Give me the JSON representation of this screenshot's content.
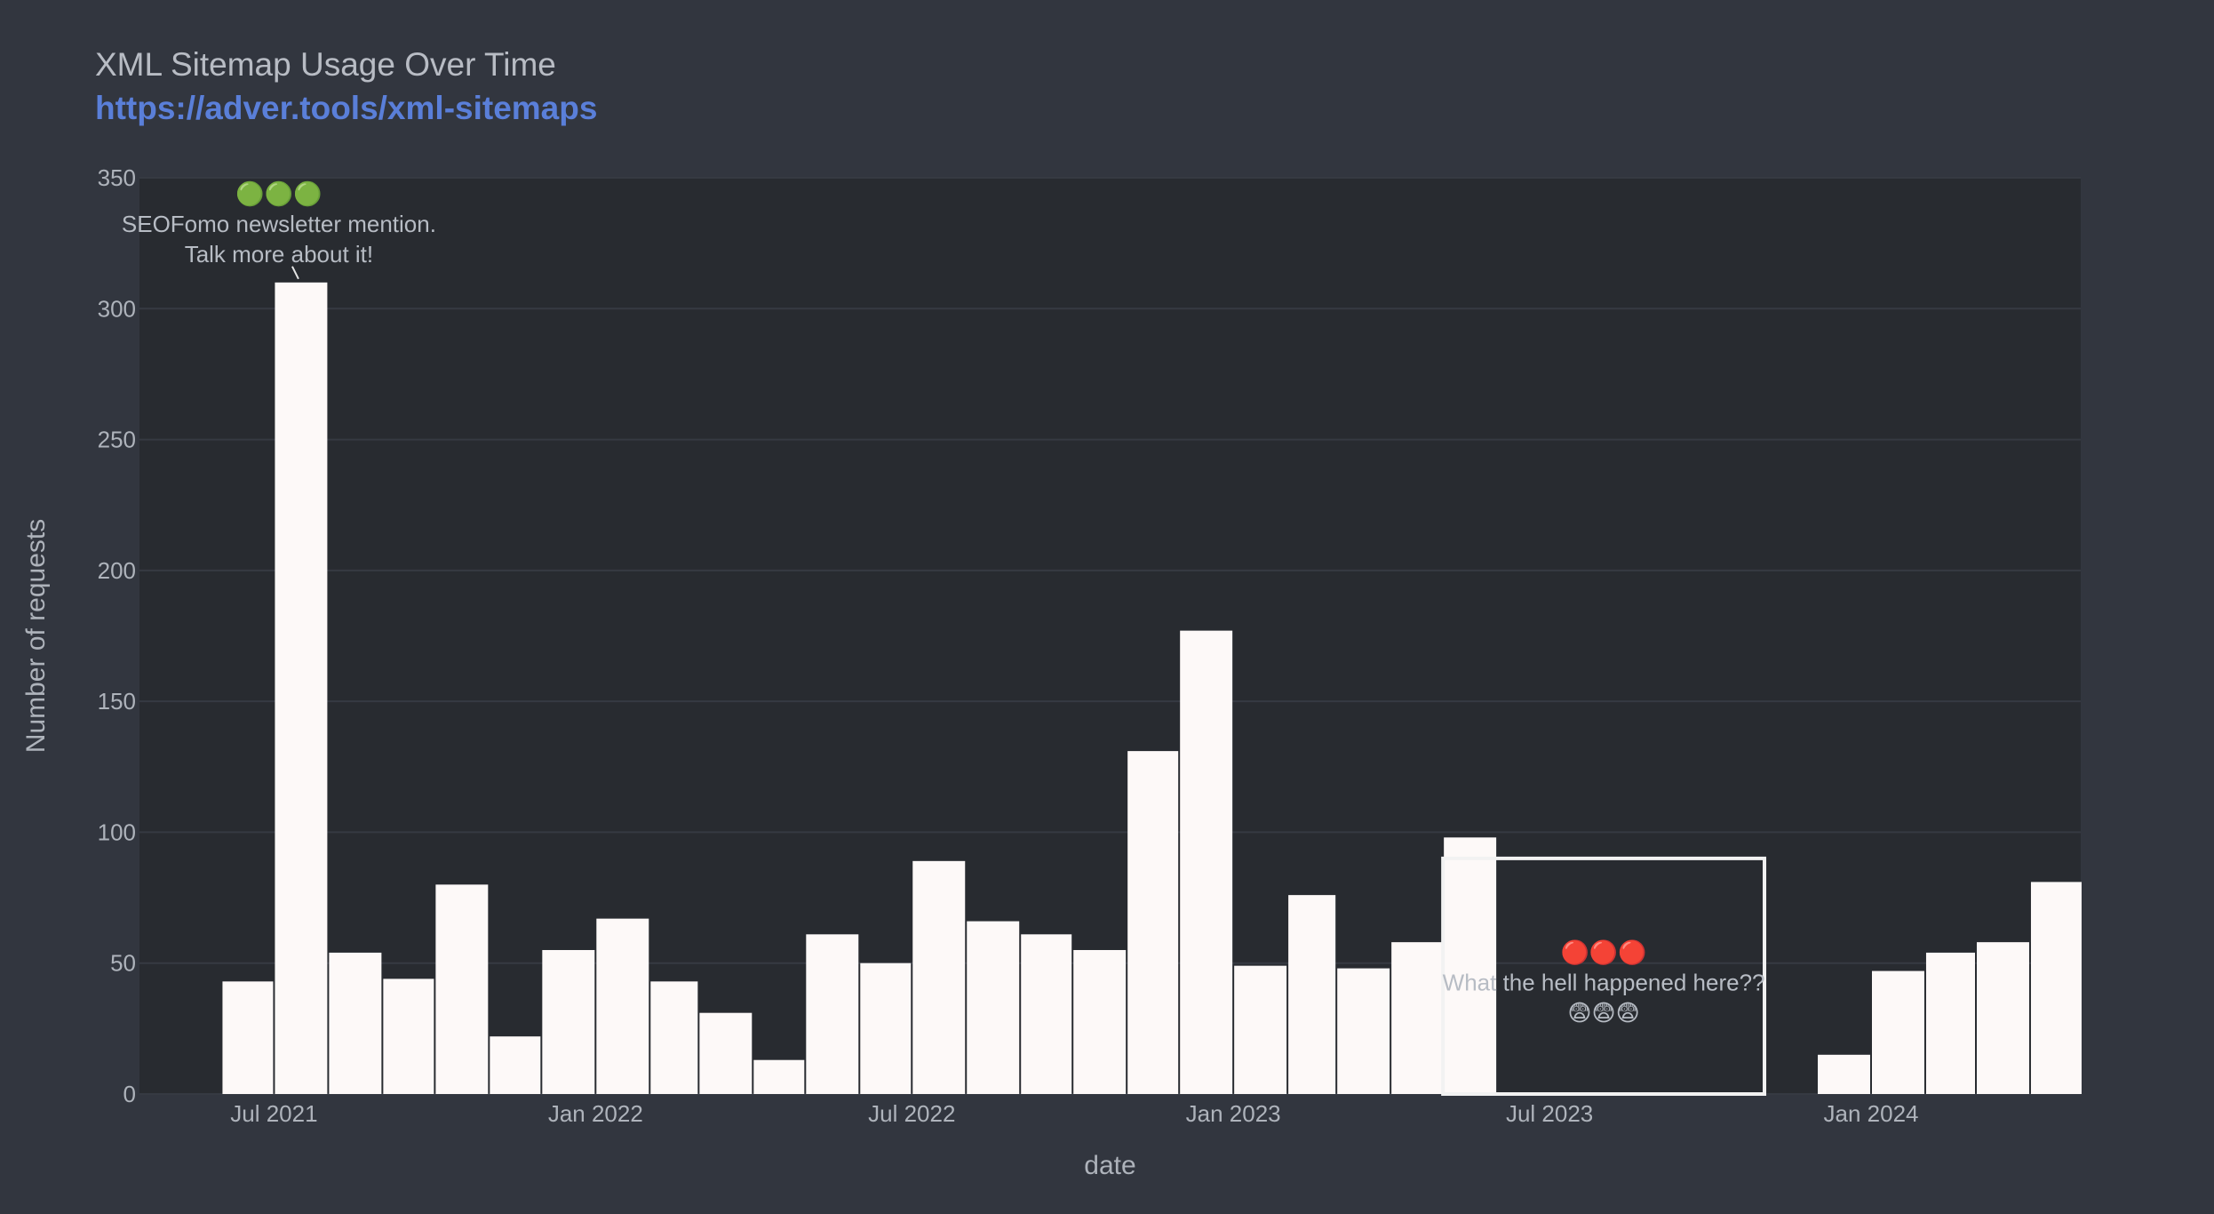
{
  "title": "XML Sitemap Usage Over Time",
  "subtitle": "https://adver.tools/xml-sitemaps",
  "chart_data": {
    "type": "bar",
    "x_unit": "month",
    "x": [
      "2021-06",
      "2021-07",
      "2021-08",
      "2021-09",
      "2021-10",
      "2021-11",
      "2021-12",
      "2022-01",
      "2022-02",
      "2022-03",
      "2022-04",
      "2022-05",
      "2022-06",
      "2022-07",
      "2022-08",
      "2022-09",
      "2022-10",
      "2022-11",
      "2022-12",
      "2023-01",
      "2023-02",
      "2023-03",
      "2023-04",
      "2023-05",
      "2023-06",
      "2023-07",
      "2023-08",
      "2023-09",
      "2023-10",
      "2023-11",
      "2023-12",
      "2024-01",
      "2024-02",
      "2024-03",
      "2024-04"
    ],
    "values": [
      43,
      310,
      54,
      44,
      80,
      22,
      55,
      67,
      43,
      31,
      13,
      61,
      50,
      89,
      66,
      61,
      55,
      131,
      177,
      49,
      76,
      48,
      58,
      98,
      0,
      0,
      0,
      0,
      0,
      0,
      15,
      47,
      54,
      58,
      81
    ],
    "xlabel": "date",
    "ylabel": "Number of requests",
    "ylim": [
      0,
      350
    ],
    "xlim": [
      "2021-04-15",
      "2024-04-30"
    ],
    "yticks": [
      0,
      50,
      100,
      150,
      200,
      250,
      300,
      350
    ],
    "xticks": [
      {
        "date": "2021-07-01",
        "label": "Jul 2021"
      },
      {
        "date": "2022-01-01",
        "label": "Jan 2022"
      },
      {
        "date": "2022-07-01",
        "label": "Jul 2022"
      },
      {
        "date": "2023-01-01",
        "label": "Jan 2023"
      },
      {
        "date": "2023-07-01",
        "label": "Jul 2023"
      },
      {
        "date": "2024-01-01",
        "label": "Jan 2024"
      }
    ],
    "grid": true,
    "colors": {
      "background": "#32363f",
      "plot_background": "#282b30",
      "bar": "#fdf9f8",
      "grid": "#363a42",
      "text": "#aeb3bb"
    },
    "annotations": [
      {
        "point": {
          "x": "2021-07",
          "y": 310
        },
        "lines": [
          "🟢🟢🟢",
          "SEOFomo newsletter mention.",
          "Talk more about it!"
        ]
      },
      {
        "box": {
          "x0": "2023-05",
          "x1": "2023-11",
          "y0": 0,
          "y1": 90
        },
        "lines": [
          "🔴🔴🔴",
          "What the hell happened here??",
          "😨😨😨"
        ]
      }
    ]
  }
}
